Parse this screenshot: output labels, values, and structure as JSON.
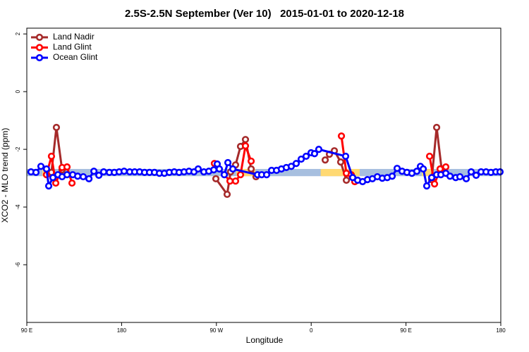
{
  "chart_data": {
    "type": "line",
    "title": "2.5S-2.5N September (Ver 10)   2015-01-01 to 2020-12-18",
    "xlabel": "Longitude",
    "ylabel": "XCO2 - MLO trend (ppm)",
    "xlim": [
      90,
      540
    ],
    "ylim": [
      -8,
      2.2
    ],
    "xticks": [
      {
        "value": 90,
        "label": "90 E"
      },
      {
        "value": 180,
        "label": "180"
      },
      {
        "value": 270,
        "label": "90 W"
      },
      {
        "value": 360,
        "label": "0"
      },
      {
        "value": 450,
        "label": "90 E"
      },
      {
        "value": 540,
        "label": "180"
      }
    ],
    "yticks": [
      2,
      0,
      -2,
      -4,
      -6
    ],
    "legend": "upper left",
    "shading": {
      "ylim": [
        -2.93,
        -2.68
      ],
      "regions": [
        {
          "xlim": [
            90,
            540
          ],
          "color": "#a7bfdf"
        },
        {
          "xlim": [
            104.7,
            114.8
          ],
          "color": "#ffd973"
        },
        {
          "xlim": [
            289,
            307
          ],
          "color": "#ffd973"
        },
        {
          "xlim": [
            369,
            406
          ],
          "color": "#ffd973"
        },
        {
          "xlim": [
            465,
            476
          ],
          "color": "#ffd973"
        }
      ]
    },
    "series": [
      {
        "name": "Land Nadir",
        "color": "#a52a2a",
        "x": [
          113.4,
          118.1,
          123.5,
          null,
          269.5,
          280.2,
          283.5,
          288.2,
          292.9,
          297.6,
          303,
          307.6,
          null,
          373.3,
          377.3,
          382,
          388,
          393.4,
          null,
          474.4,
          479.1,
          483.8
        ],
        "values": [
          -2.8,
          -1.24,
          -2.71,
          null,
          -3.02,
          -3.56,
          -2.78,
          -2.54,
          -1.9,
          -1.66,
          -2.68,
          -2.95,
          null,
          -2.37,
          -2.17,
          -2.05,
          -2.44,
          -3.07,
          null,
          -3.05,
          -1.24,
          -2.68
        ]
      },
      {
        "name": "Land Glint",
        "color": "#ff0000",
        "x": [
          108.7,
          113.4,
          117.5,
          123.5,
          128.2,
          132.9,
          null,
          268.1,
          282.9,
          288.2,
          292.9,
          297.6,
          303,
          null,
          388.7,
          393.4,
          398,
          401.4,
          null,
          472.4,
          477.1,
          482.4,
          487.8
        ],
        "values": [
          -2.88,
          -2.24,
          -3.17,
          -2.63,
          -2.61,
          -3.17,
          null,
          -2.49,
          -3.1,
          -3.1,
          -2.88,
          -1.88,
          -2.41,
          null,
          -1.54,
          -2.83,
          -2.88,
          -3.12,
          null,
          -2.24,
          -3.2,
          -2.68,
          -2.61
        ]
      },
      {
        "name": "Ocean Glint",
        "color": "#0000ff",
        "x": [
          94,
          98.7,
          103.4,
          108.7,
          110.8,
          114.8,
          119.5,
          123.5,
          128.2,
          133.6,
          138.3,
          143.6,
          149,
          153.7,
          158.4,
          163,
          168.4,
          173.1,
          177.7,
          182.4,
          187.7,
          192.4,
          197.1,
          201.8,
          206.5,
          211.2,
          215.9,
          220.6,
          225.3,
          230,
          234.6,
          239.3,
          244,
          248.7,
          252.7,
          258.1,
          262.8,
          267.5,
          270.8,
          272.8,
          277.5,
          280.9,
          285.6,
          309,
          313,
          317.7,
          322.4,
          327.1,
          331.7,
          336.4,
          341.1,
          345.8,
          350.5,
          355.2,
          359.9,
          363.2,
          367.2,
          392.7,
          399.4,
          404.1,
          408.8,
          413.4,
          418.1,
          422.8,
          427.5,
          432.2,
          436.9,
          441.6,
          446.3,
          450.9,
          455.6,
          460.3,
          463.7,
          466.4,
          469.7,
          474.4,
          479.1,
          483.1,
          487.8,
          491.8,
          497.2,
          501.2,
          507.2,
          511.9,
          516.6,
          521.3,
          526,
          530.6,
          535.3,
          539.3
        ],
        "values": [
          -2.78,
          -2.8,
          -2.59,
          -2.68,
          -3.27,
          -2.98,
          -2.88,
          -2.95,
          -2.88,
          -2.88,
          -2.93,
          -2.95,
          -3.02,
          -2.76,
          -2.9,
          -2.78,
          -2.8,
          -2.8,
          -2.78,
          -2.76,
          -2.78,
          -2.78,
          -2.78,
          -2.8,
          -2.8,
          -2.8,
          -2.83,
          -2.83,
          -2.8,
          -2.78,
          -2.8,
          -2.78,
          -2.76,
          -2.78,
          -2.68,
          -2.78,
          -2.76,
          -2.71,
          -2.51,
          -2.68,
          -2.88,
          -2.46,
          -2.68,
          -2.88,
          -2.88,
          -2.88,
          -2.73,
          -2.73,
          -2.68,
          -2.63,
          -2.59,
          -2.49,
          -2.34,
          -2.24,
          -2.12,
          -2.15,
          -2.0,
          -2.24,
          -2.98,
          -3.07,
          -3.12,
          -3.05,
          -3.02,
          -2.95,
          -3.0,
          -2.98,
          -2.93,
          -2.66,
          -2.76,
          -2.8,
          -2.83,
          -2.76,
          -2.59,
          -2.68,
          -3.27,
          -2.98,
          -2.88,
          -2.88,
          -2.83,
          -2.93,
          -2.98,
          -2.95,
          -3.02,
          -2.78,
          -2.9,
          -2.78,
          -2.78,
          -2.8,
          -2.78,
          -2.78
        ]
      }
    ]
  }
}
